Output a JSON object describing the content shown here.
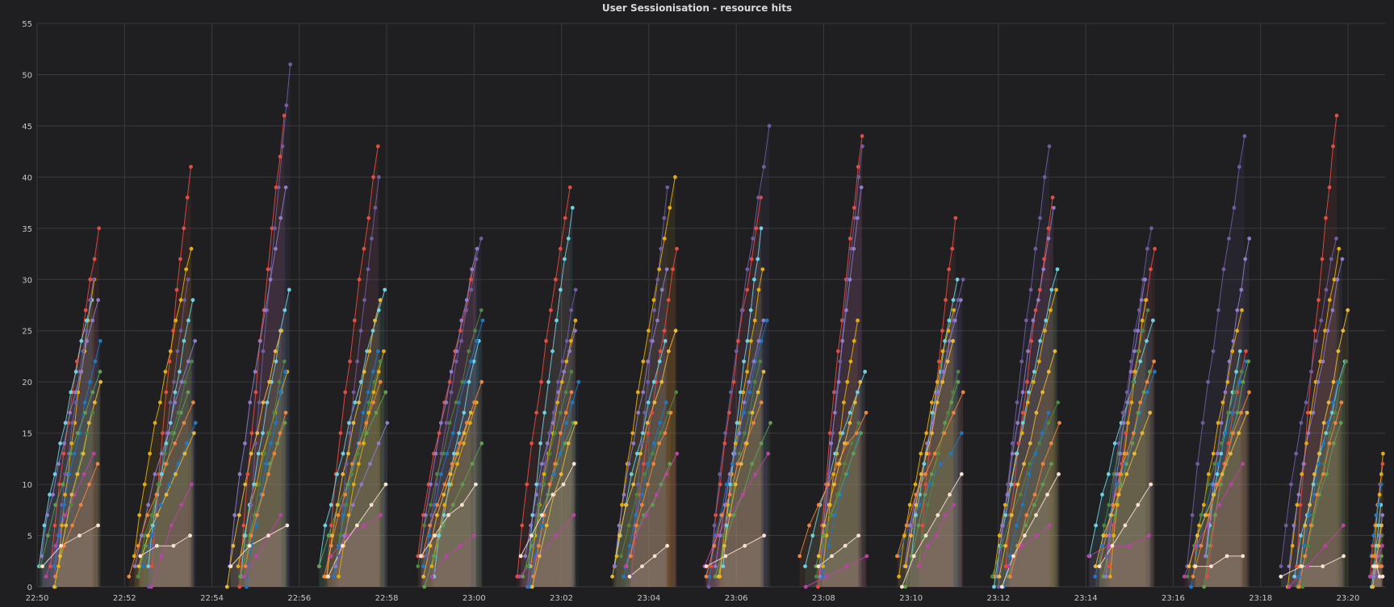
{
  "panel": {
    "title": "User Sessionisation - resource hits"
  },
  "chart_data": {
    "type": "line",
    "title": "User Sessionisation - resource hits",
    "xlabel": "",
    "ylabel": "",
    "x_unit": "minutes after 22:50",
    "xlim": [
      0,
      61.7
    ],
    "ylim": [
      0,
      55
    ],
    "y_ticks": [
      0,
      5,
      10,
      15,
      20,
      25,
      30,
      35,
      40,
      45,
      50,
      55
    ],
    "x_ticks": [
      {
        "t": 0,
        "label": "22:50"
      },
      {
        "t": 4,
        "label": "22:52"
      },
      {
        "t": 8,
        "label": "22:54"
      },
      {
        "t": 12,
        "label": "22:56"
      },
      {
        "t": 16,
        "label": "22:58"
      },
      {
        "t": 20,
        "label": "23:00"
      },
      {
        "t": 24,
        "label": "23:02"
      },
      {
        "t": 28,
        "label": "23:04"
      },
      {
        "t": 32,
        "label": "23:06"
      },
      {
        "t": 36,
        "label": "23:08"
      },
      {
        "t": 40,
        "label": "23:10"
      },
      {
        "t": 44,
        "label": "23:12"
      },
      {
        "t": 48,
        "label": "23:14"
      },
      {
        "t": 52,
        "label": "23:16"
      },
      {
        "t": 56,
        "label": "23:18"
      },
      {
        "t": 60,
        "label": "23:20"
      }
    ],
    "grid": true,
    "legend": "none",
    "bursts": [
      {
        "start": -0.1,
        "end": 3.0,
        "peaks": [
          35,
          30,
          28,
          30,
          24,
          21,
          17,
          13,
          28,
          12,
          20,
          6
        ]
      },
      {
        "start": 4.2,
        "end": 7.3,
        "peaks": [
          41,
          33,
          28,
          30,
          16,
          19,
          22,
          10,
          24,
          18,
          15,
          5
        ]
      },
      {
        "start": 8.6,
        "end": 11.7,
        "peaks": [
          46,
          21,
          29,
          51,
          21,
          16,
          22,
          7,
          39,
          17,
          25,
          6
        ]
      },
      {
        "start": 12.9,
        "end": 16.1,
        "peaks": [
          43,
          23,
          29,
          40,
          23,
          19,
          22,
          7,
          16,
          20,
          28,
          10
        ]
      },
      {
        "start": 17.3,
        "end": 20.4,
        "peaks": [
          32,
          18,
          24,
          34,
          26,
          14,
          27,
          5,
          33,
          20,
          17,
          10
        ]
      },
      {
        "start": 21.7,
        "end": 24.8,
        "peaks": [
          39,
          26,
          37,
          29,
          20,
          16,
          21,
          7,
          25,
          19,
          16,
          12
        ]
      },
      {
        "start": 26.1,
        "end": 29.3,
        "peaks": [
          33,
          40,
          24,
          39,
          18,
          12,
          19,
          13,
          31,
          17,
          25,
          4
        ]
      },
      {
        "start": 30.5,
        "end": 33.6,
        "peaks": [
          38,
          31,
          35,
          45,
          26,
          16,
          22,
          13,
          26,
          18,
          21,
          5
        ]
      },
      {
        "start": 34.9,
        "end": 38.0,
        "peaks": [
          44,
          26,
          21,
          43,
          15,
          15,
          16,
          3,
          39,
          17,
          20,
          5
        ]
      },
      {
        "start": 39.3,
        "end": 42.4,
        "peaks": [
          36,
          27,
          30,
          30,
          15,
          20,
          21,
          8,
          28,
          19,
          24,
          11
        ]
      },
      {
        "start": 43.7,
        "end": 46.8,
        "peaks": [
          38,
          29,
          31,
          43,
          17,
          12,
          18,
          6,
          37,
          16,
          23,
          11
        ]
      },
      {
        "start": 48.1,
        "end": 51.2,
        "peaks": [
          33,
          28,
          26,
          35,
          21,
          21,
          27,
          5,
          30,
          22,
          17,
          10
        ]
      },
      {
        "start": 52.5,
        "end": 55.6,
        "peaks": [
          23,
          27,
          23,
          44,
          22,
          22,
          21,
          12,
          34,
          19,
          17,
          3
        ]
      },
      {
        "start": 56.9,
        "end": 60.0,
        "peaks": [
          46,
          33,
          22,
          34,
          20,
          16,
          22,
          6,
          32,
          18,
          27,
          3
        ]
      },
      {
        "start": 61.0,
        "end": 61.6,
        "peaks": [
          12,
          13,
          8,
          2,
          10,
          3,
          5,
          4,
          7,
          2,
          6,
          1
        ]
      }
    ],
    "series_colors": [
      "#e24d42",
      "#e5ac0e",
      "#6ed0e0",
      "#705da0",
      "#1f78c1",
      "#629e51",
      "#508642",
      "#ba43a9",
      "#8f7cc9",
      "#ef843c",
      "#eab839",
      "#f9e2d2"
    ],
    "colors": {
      "background": "#1f1f21",
      "grid": "#3a3a3d",
      "text": "#c7c7c7",
      "title": "#d8d9da"
    }
  }
}
